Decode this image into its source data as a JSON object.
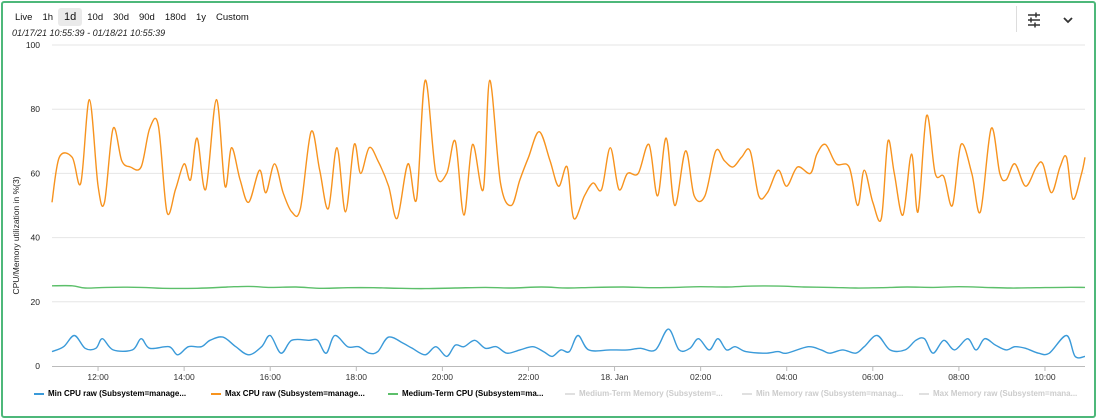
{
  "toolbar": {
    "ranges": [
      "Live",
      "1h",
      "1d",
      "10d",
      "30d",
      "90d",
      "180d",
      "1y",
      "Custom"
    ],
    "active_range": "1d",
    "date_range": "01/17/21 10:55:39 - 01/18/21 10:55:39",
    "icons": [
      "sliders-icon",
      "chevron-down-icon"
    ]
  },
  "chart_data": {
    "type": "line",
    "ylabel": "CPU/Memory utilization in %(3)",
    "ylim": [
      0,
      100
    ],
    "yticks": [
      0,
      20,
      40,
      60,
      80,
      100
    ],
    "xlim": [
      10.93,
      34.93
    ],
    "xticks": [
      {
        "h": 12,
        "label": "12:00"
      },
      {
        "h": 14,
        "label": "14:00"
      },
      {
        "h": 16,
        "label": "16:00"
      },
      {
        "h": 18,
        "label": "18:00"
      },
      {
        "h": 20,
        "label": "20:00"
      },
      {
        "h": 22,
        "label": "22:00"
      },
      {
        "h": 24,
        "label": "18. Jan"
      },
      {
        "h": 26,
        "label": "02:00"
      },
      {
        "h": 28,
        "label": "04:00"
      },
      {
        "h": 30,
        "label": "06:00"
      },
      {
        "h": 32,
        "label": "08:00"
      },
      {
        "h": 34,
        "label": "10:00"
      }
    ],
    "grid": true,
    "legend_position": "bottom",
    "series": [
      {
        "name": "Min CPU raw (Subsystem=manage...",
        "color": "#3a9ad9",
        "visible": true,
        "points": [
          [
            10.93,
            4.5
          ],
          [
            11.2,
            6
          ],
          [
            11.45,
            9.5
          ],
          [
            11.7,
            5.5
          ],
          [
            11.95,
            5.5
          ],
          [
            12.1,
            8.5
          ],
          [
            12.35,
            5
          ],
          [
            12.8,
            5
          ],
          [
            13.0,
            8.5
          ],
          [
            13.2,
            5.5
          ],
          [
            13.65,
            6
          ],
          [
            13.85,
            3.5
          ],
          [
            14.1,
            6
          ],
          [
            14.4,
            6
          ],
          [
            14.6,
            8
          ],
          [
            14.9,
            9
          ],
          [
            15.2,
            6
          ],
          [
            15.5,
            3.5
          ],
          [
            15.8,
            6
          ],
          [
            16.0,
            9.5
          ],
          [
            16.25,
            4
          ],
          [
            16.5,
            8
          ],
          [
            16.9,
            8
          ],
          [
            17.1,
            8
          ],
          [
            17.3,
            4
          ],
          [
            17.5,
            9.5
          ],
          [
            17.8,
            6
          ],
          [
            18.05,
            6
          ],
          [
            18.3,
            4
          ],
          [
            18.5,
            4.5
          ],
          [
            18.75,
            9
          ],
          [
            19.1,
            7
          ],
          [
            19.3,
            5.5
          ],
          [
            19.6,
            3.5
          ],
          [
            19.85,
            6
          ],
          [
            20.1,
            3
          ],
          [
            20.3,
            6.5
          ],
          [
            20.5,
            6
          ],
          [
            20.75,
            8
          ],
          [
            21.0,
            5.5
          ],
          [
            21.25,
            6
          ],
          [
            21.5,
            4
          ],
          [
            21.8,
            5
          ],
          [
            22.1,
            6
          ],
          [
            22.35,
            4.5
          ],
          [
            22.55,
            3
          ],
          [
            22.75,
            5
          ],
          [
            22.95,
            4.5
          ],
          [
            23.15,
            9.5
          ],
          [
            23.4,
            5
          ],
          [
            23.9,
            5
          ],
          [
            24.3,
            5
          ],
          [
            24.6,
            5.5
          ],
          [
            24.95,
            5
          ],
          [
            25.25,
            11.5
          ],
          [
            25.5,
            5
          ],
          [
            25.75,
            5.5
          ],
          [
            25.95,
            8.5
          ],
          [
            26.2,
            5
          ],
          [
            26.4,
            8.5
          ],
          [
            26.6,
            5
          ],
          [
            26.8,
            6
          ],
          [
            27.05,
            4.5
          ],
          [
            27.5,
            4
          ],
          [
            27.8,
            4.5
          ],
          [
            28.0,
            4
          ],
          [
            28.5,
            6
          ],
          [
            28.8,
            5
          ],
          [
            29.0,
            4
          ],
          [
            29.3,
            5
          ],
          [
            29.6,
            4
          ],
          [
            29.8,
            6
          ],
          [
            30.1,
            9.5
          ],
          [
            30.4,
            5
          ],
          [
            30.75,
            5
          ],
          [
            31.0,
            8
          ],
          [
            31.2,
            8.5
          ],
          [
            31.4,
            4
          ],
          [
            31.65,
            8
          ],
          [
            31.9,
            5
          ],
          [
            32.2,
            8.5
          ],
          [
            32.4,
            5
          ],
          [
            32.6,
            8.5
          ],
          [
            32.85,
            6.5
          ],
          [
            33.1,
            5
          ],
          [
            33.3,
            6
          ],
          [
            33.55,
            5.5
          ],
          [
            33.85,
            4
          ],
          [
            34.1,
            4
          ],
          [
            34.5,
            9.5
          ],
          [
            34.7,
            3
          ],
          [
            34.93,
            3
          ]
        ]
      },
      {
        "name": "Max CPU raw (Subsystem=manage...",
        "color": "#f7931e",
        "visible": true,
        "points": [
          [
            10.93,
            51
          ],
          [
            11.1,
            65
          ],
          [
            11.4,
            65
          ],
          [
            11.6,
            57
          ],
          [
            11.8,
            83
          ],
          [
            12.0,
            56
          ],
          [
            12.15,
            51
          ],
          [
            12.35,
            74
          ],
          [
            12.55,
            64
          ],
          [
            12.75,
            62
          ],
          [
            13.0,
            62
          ],
          [
            13.2,
            74
          ],
          [
            13.4,
            75
          ],
          [
            13.6,
            48
          ],
          [
            13.8,
            55
          ],
          [
            14.0,
            63
          ],
          [
            14.15,
            58
          ],
          [
            14.3,
            71
          ],
          [
            14.5,
            55
          ],
          [
            14.75,
            83
          ],
          [
            14.95,
            56
          ],
          [
            15.1,
            68
          ],
          [
            15.3,
            58
          ],
          [
            15.5,
            51
          ],
          [
            15.75,
            61
          ],
          [
            15.9,
            54
          ],
          [
            16.1,
            63
          ],
          [
            16.3,
            54
          ],
          [
            16.5,
            48
          ],
          [
            16.7,
            49
          ],
          [
            16.95,
            73
          ],
          [
            17.15,
            61
          ],
          [
            17.35,
            49
          ],
          [
            17.55,
            68
          ],
          [
            17.75,
            48
          ],
          [
            17.95,
            69
          ],
          [
            18.1,
            60
          ],
          [
            18.3,
            68
          ],
          [
            18.5,
            64
          ],
          [
            18.75,
            56
          ],
          [
            18.95,
            46
          ],
          [
            19.2,
            63
          ],
          [
            19.4,
            52
          ],
          [
            19.6,
            89
          ],
          [
            19.85,
            60
          ],
          [
            20.1,
            60
          ],
          [
            20.3,
            70
          ],
          [
            20.5,
            47
          ],
          [
            20.7,
            69
          ],
          [
            20.95,
            55
          ],
          [
            21.1,
            89
          ],
          [
            21.35,
            57
          ],
          [
            21.6,
            50
          ],
          [
            21.8,
            58
          ],
          [
            22.0,
            65
          ],
          [
            22.25,
            73
          ],
          [
            22.5,
            64
          ],
          [
            22.7,
            56
          ],
          [
            22.9,
            62
          ],
          [
            23.05,
            46
          ],
          [
            23.3,
            53
          ],
          [
            23.5,
            57
          ],
          [
            23.7,
            55
          ],
          [
            23.9,
            68
          ],
          [
            24.1,
            55
          ],
          [
            24.3,
            60
          ],
          [
            24.55,
            60
          ],
          [
            24.8,
            69
          ],
          [
            25.0,
            53
          ],
          [
            25.2,
            71
          ],
          [
            25.4,
            50
          ],
          [
            25.65,
            67
          ],
          [
            25.85,
            53
          ],
          [
            26.1,
            53
          ],
          [
            26.35,
            67
          ],
          [
            26.55,
            64
          ],
          [
            26.75,
            62
          ],
          [
            26.95,
            65
          ],
          [
            27.15,
            67
          ],
          [
            27.35,
            53
          ],
          [
            27.55,
            54
          ],
          [
            27.8,
            61
          ],
          [
            28.0,
            56
          ],
          [
            28.25,
            62
          ],
          [
            28.55,
            60
          ],
          [
            28.7,
            66
          ],
          [
            28.9,
            69
          ],
          [
            29.15,
            63
          ],
          [
            29.45,
            62
          ],
          [
            29.65,
            50
          ],
          [
            29.8,
            61
          ],
          [
            30.0,
            51
          ],
          [
            30.2,
            46
          ],
          [
            30.35,
            70
          ],
          [
            30.5,
            60
          ],
          [
            30.7,
            47
          ],
          [
            30.9,
            66
          ],
          [
            31.05,
            48
          ],
          [
            31.25,
            78
          ],
          [
            31.45,
            60
          ],
          [
            31.65,
            59
          ],
          [
            31.85,
            50
          ],
          [
            32.05,
            69
          ],
          [
            32.3,
            60
          ],
          [
            32.5,
            48
          ],
          [
            32.75,
            74
          ],
          [
            32.95,
            60
          ],
          [
            33.1,
            58
          ],
          [
            33.3,
            63
          ],
          [
            33.55,
            56
          ],
          [
            33.8,
            62
          ],
          [
            33.95,
            63
          ],
          [
            34.15,
            54
          ],
          [
            34.35,
            62
          ],
          [
            34.5,
            65
          ],
          [
            34.65,
            52
          ],
          [
            34.85,
            60
          ],
          [
            34.93,
            65
          ]
        ]
      },
      {
        "name": "Medium-Term CPU (Subsystem=ma...",
        "color": "#5cbf6a",
        "visible": true,
        "points": [
          [
            10.93,
            25
          ],
          [
            11.4,
            25
          ],
          [
            11.7,
            24.3
          ],
          [
            12.2,
            24.5
          ],
          [
            13.0,
            24.5
          ],
          [
            13.5,
            24.2
          ],
          [
            14.3,
            24.2
          ],
          [
            15.0,
            24.6
          ],
          [
            15.5,
            24.8
          ],
          [
            16.0,
            24.5
          ],
          [
            16.6,
            24.6
          ],
          [
            17.2,
            24.2
          ],
          [
            17.8,
            24.4
          ],
          [
            18.4,
            24.4
          ],
          [
            19.0,
            24.2
          ],
          [
            19.6,
            24.1
          ],
          [
            20.3,
            24.3
          ],
          [
            21.0,
            24.5
          ],
          [
            21.6,
            24.3
          ],
          [
            22.3,
            24.6
          ],
          [
            22.9,
            24.3
          ],
          [
            23.5,
            24.5
          ],
          [
            24.2,
            24.6
          ],
          [
            24.8,
            24.4
          ],
          [
            25.4,
            24.5
          ],
          [
            26.0,
            24.7
          ],
          [
            26.6,
            24.6
          ],
          [
            27.2,
            24.9
          ],
          [
            27.8,
            24.9
          ],
          [
            28.4,
            24.6
          ],
          [
            29.0,
            24.5
          ],
          [
            29.6,
            24.3
          ],
          [
            30.2,
            24.4
          ],
          [
            30.8,
            24.6
          ],
          [
            31.4,
            24.5
          ],
          [
            32.0,
            24.7
          ],
          [
            32.6,
            24.5
          ],
          [
            33.2,
            24.3
          ],
          [
            33.8,
            24.4
          ],
          [
            34.4,
            24.5
          ],
          [
            34.93,
            24.5
          ]
        ]
      },
      {
        "name": "Medium-Term Memory (Subsystem=...",
        "color": "#cccccc",
        "visible": false,
        "points": []
      },
      {
        "name": "Min Memory raw (Subsystem=manag...",
        "color": "#cccccc",
        "visible": false,
        "points": []
      },
      {
        "name": "Max Memory raw (Subsystem=mana...",
        "color": "#cccccc",
        "visible": false,
        "points": []
      }
    ]
  }
}
